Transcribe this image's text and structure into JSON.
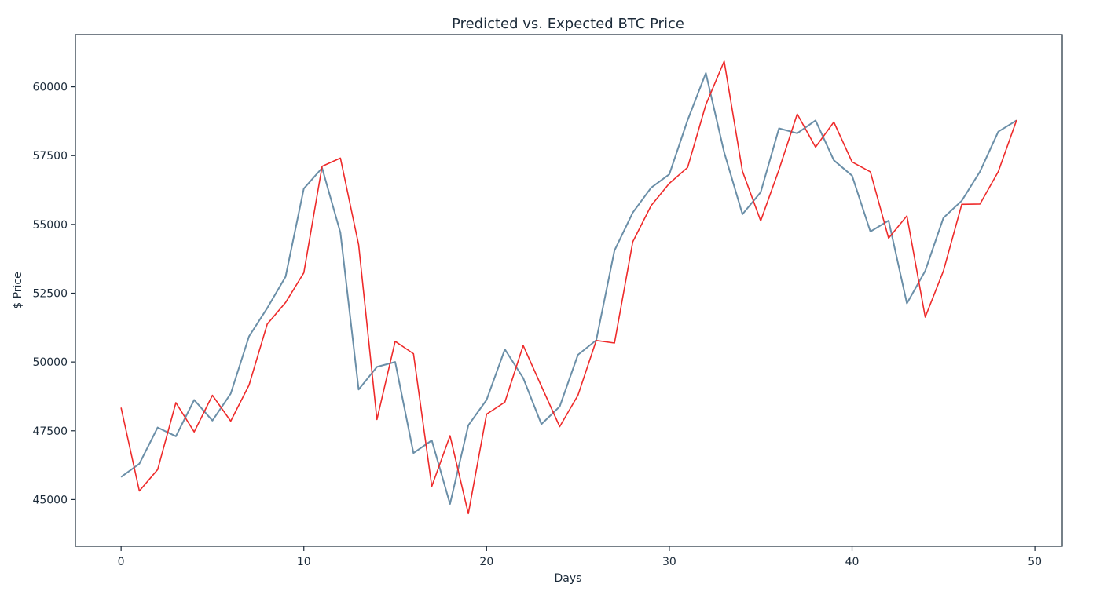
{
  "chart_data": {
    "type": "line",
    "title": "Predicted vs. Expected BTC Price",
    "xlabel": "Days",
    "ylabel": "$ Price",
    "xlim": [
      -2.5,
      51.5
    ],
    "ylim": [
      43300,
      61900
    ],
    "xticks": [
      0,
      10,
      20,
      30,
      40,
      50
    ],
    "yticks": [
      45000,
      47500,
      50000,
      52500,
      55000,
      57500,
      60000
    ],
    "grid": false,
    "x": [
      0,
      1,
      2,
      3,
      4,
      5,
      6,
      7,
      8,
      9,
      10,
      11,
      12,
      13,
      14,
      15,
      16,
      17,
      18,
      19,
      20,
      21,
      22,
      23,
      24,
      25,
      26,
      27,
      28,
      29,
      30,
      31,
      32,
      33,
      34,
      35,
      36,
      37,
      38,
      39,
      40,
      41,
      42,
      43,
      44,
      45,
      46,
      47,
      48,
      49
    ],
    "series": [
      {
        "color": "#6b8fa8",
        "values": [
          45820,
          46300,
          47620,
          47300,
          48620,
          47870,
          48850,
          50930,
          51960,
          53100,
          56300,
          57050,
          54700,
          49000,
          49820,
          50000,
          46690,
          47150,
          44840,
          47700,
          48620,
          50460,
          49420,
          47740,
          48380,
          50260,
          50790,
          54050,
          55430,
          56330,
          56820,
          58790,
          60500,
          57620,
          55370,
          56170,
          58490,
          58310,
          58780,
          57330,
          56770,
          54740,
          55140,
          52130,
          53310,
          55240,
          55860,
          56920,
          58370,
          58780
        ],
        "line_width": 2.0
      },
      {
        "color": "#ee2a2a",
        "values": [
          48340,
          45310,
          46090,
          48520,
          47460,
          48790,
          47850,
          49160,
          51380,
          52160,
          53240,
          57110,
          57410,
          54260,
          47910,
          50750,
          50300,
          45480,
          47320,
          44490,
          48100,
          48540,
          50600,
          49120,
          47650,
          48790,
          50780,
          50690,
          54370,
          55680,
          56490,
          57070,
          59350,
          60930,
          56930,
          55130,
          56990,
          59010,
          57810,
          58720,
          57270,
          56910,
          54500,
          55310,
          51630,
          53310,
          55730,
          55740,
          56920,
          58790
        ],
        "line_width": 1.6
      }
    ]
  }
}
